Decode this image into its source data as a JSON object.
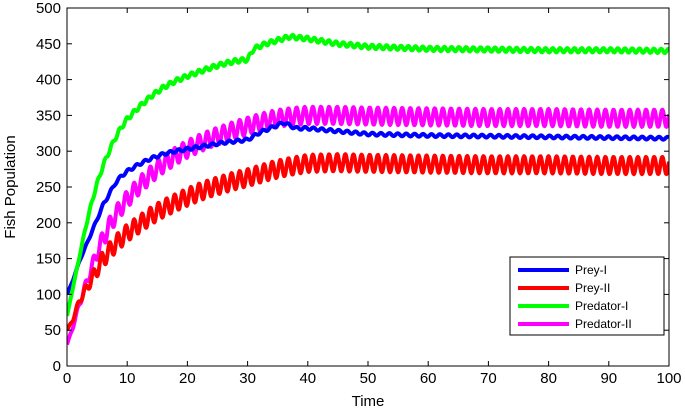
{
  "chart_data": {
    "type": "line",
    "xlabel": "Time",
    "ylabel": "Fish Population",
    "xlim": [
      0,
      100
    ],
    "ylim": [
      0,
      500
    ],
    "xticks": [
      0,
      10,
      20,
      30,
      40,
      50,
      60,
      70,
      80,
      90,
      100
    ],
    "yticks": [
      0,
      50,
      100,
      150,
      200,
      250,
      300,
      350,
      400,
      450,
      500
    ],
    "grid": false,
    "legend_position": "bottom-right",
    "series": [
      {
        "name": "Prey-I",
        "color": "#0000ff",
        "oscillation_amplitude": 2,
        "oscillation_period": 1.4,
        "x": [
          0,
          1,
          2,
          3,
          4,
          5,
          6,
          7,
          8,
          9,
          10,
          12,
          14,
          16,
          18,
          20,
          22,
          24,
          26,
          28,
          30,
          32,
          34,
          36,
          38,
          40,
          45,
          50,
          60,
          70,
          80,
          90,
          100
        ],
        "y": [
          100,
          120,
          145,
          165,
          185,
          205,
          225,
          240,
          255,
          265,
          272,
          282,
          290,
          296,
          300,
          303,
          306,
          309,
          312,
          314,
          316,
          326,
          333,
          340,
          332,
          332,
          328,
          324,
          322,
          321,
          320,
          319,
          318
        ]
      },
      {
        "name": "Prey-II",
        "color": "#ff0000",
        "oscillation_amplitude": 12,
        "oscillation_period": 1.35,
        "x": [
          0,
          1,
          2,
          3,
          4,
          5,
          6,
          7,
          8,
          9,
          10,
          12,
          14,
          16,
          18,
          20,
          22,
          24,
          26,
          28,
          30,
          32,
          34,
          36,
          38,
          40,
          45,
          50,
          60,
          70,
          80,
          90,
          100
        ],
        "y": [
          50,
          65,
          90,
          105,
          120,
          135,
          150,
          160,
          170,
          178,
          186,
          198,
          210,
          220,
          228,
          236,
          243,
          249,
          254,
          259,
          263,
          268,
          273,
          277,
          280,
          283,
          284,
          283,
          282,
          281,
          281,
          280,
          280
        ]
      },
      {
        "name": "Predator-I",
        "color": "#00ff00",
        "oscillation_amplitude": 3,
        "oscillation_period": 1.2,
        "x": [
          0,
          1,
          2,
          3,
          4,
          5,
          6,
          7,
          8,
          9,
          10,
          12,
          14,
          16,
          18,
          20,
          22,
          24,
          26,
          28,
          30,
          31,
          33,
          35,
          37,
          40,
          45,
          50,
          60,
          70,
          80,
          90,
          100
        ],
        "y": [
          70,
          110,
          150,
          190,
          225,
          255,
          280,
          300,
          318,
          333,
          345,
          362,
          377,
          389,
          398,
          405,
          411,
          417,
          422,
          426,
          428,
          443,
          450,
          455,
          460,
          457,
          450,
          446,
          443,
          442,
          441,
          441,
          440
        ]
      },
      {
        "name": "Predator-II",
        "color": "#ff00ff",
        "oscillation_amplitude": 12,
        "oscillation_period": 1.35,
        "x": [
          0,
          1,
          2,
          3,
          4,
          5,
          6,
          7,
          8,
          9,
          10,
          12,
          14,
          16,
          18,
          20,
          22,
          24,
          26,
          28,
          30,
          32,
          34,
          36,
          38,
          40,
          45,
          50,
          60,
          70,
          80,
          90,
          100
        ],
        "y": [
          30,
          55,
          85,
          110,
          135,
          158,
          178,
          195,
          210,
          222,
          233,
          252,
          268,
          282,
          293,
          303,
          311,
          318,
          324,
          330,
          335,
          340,
          344,
          347,
          349,
          350,
          350,
          349,
          348,
          347,
          347,
          346,
          346
        ]
      }
    ]
  }
}
